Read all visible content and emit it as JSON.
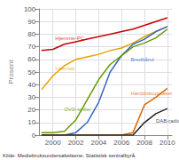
{
  "chart_data": {
    "type": "line",
    "ylabel": "Prosent",
    "source": "Kilde: Mediebruksundersøkelsene, Statistisk sentralbyrå.",
    "x": [
      1999,
      2000,
      2001,
      2002,
      2003,
      2004,
      2005,
      2006,
      2007,
      2008,
      2009,
      2010
    ],
    "series": [
      {
        "name": "Hjemme-PC",
        "color": "#cc0000",
        "values": [
          67,
          68,
          72,
          74,
          76,
          78,
          80,
          82,
          84,
          87,
          90,
          93
        ]
      },
      {
        "name": "Internett",
        "color": "#e8a000",
        "values": [
          36,
          47,
          55,
          60,
          62,
          64,
          67,
          69,
          73,
          78,
          82,
          86
        ]
      },
      {
        "name": "Bredbånd",
        "color": "#3366cc",
        "values": [
          0,
          0,
          0,
          2,
          10,
          26,
          50,
          63,
          72,
          76,
          82,
          86
        ]
      },
      {
        "name": "DVD-spiller",
        "color": "#669900",
        "values": [
          2,
          2,
          3,
          12,
          28,
          44,
          56,
          63,
          70,
          73,
          77,
          84
        ]
      },
      {
        "name": "Harddiskopptaker",
        "color": "#dd6600",
        "values": [
          0,
          0,
          0,
          0,
          0,
          0,
          0,
          0,
          2,
          24,
          30,
          37
        ]
      },
      {
        "name": "DAB-radio",
        "color": "#222222",
        "values": [
          0,
          0,
          0,
          0,
          0,
          0,
          0,
          0,
          0,
          10,
          17,
          21
        ]
      }
    ],
    "annotations": [
      {
        "text": "Hjemme-PC",
        "x": 2000.2,
        "y": 75
      },
      {
        "text": "Internett",
        "x": 2000.2,
        "y": 51
      },
      {
        "text": "Bredbånd",
        "x": 2006.8,
        "y": 58
      },
      {
        "text": "DVD-spiller",
        "x": 2001.0,
        "y": 18
      },
      {
        "text": "Harddiskopptaker",
        "x": 2006.8,
        "y": 31
      },
      {
        "text": "DAB-radio",
        "x": 2009.0,
        "y": 9
      }
    ],
    "xlim": [
      1998.8,
      2010.4
    ],
    "xticks": [
      2000,
      2002,
      2004,
      2006,
      2008,
      2010
    ],
    "ylim": [
      0,
      100
    ],
    "yticks": [
      0,
      10,
      20,
      30,
      40,
      50,
      60,
      70,
      80,
      90,
      100
    ],
    "grid": true
  }
}
